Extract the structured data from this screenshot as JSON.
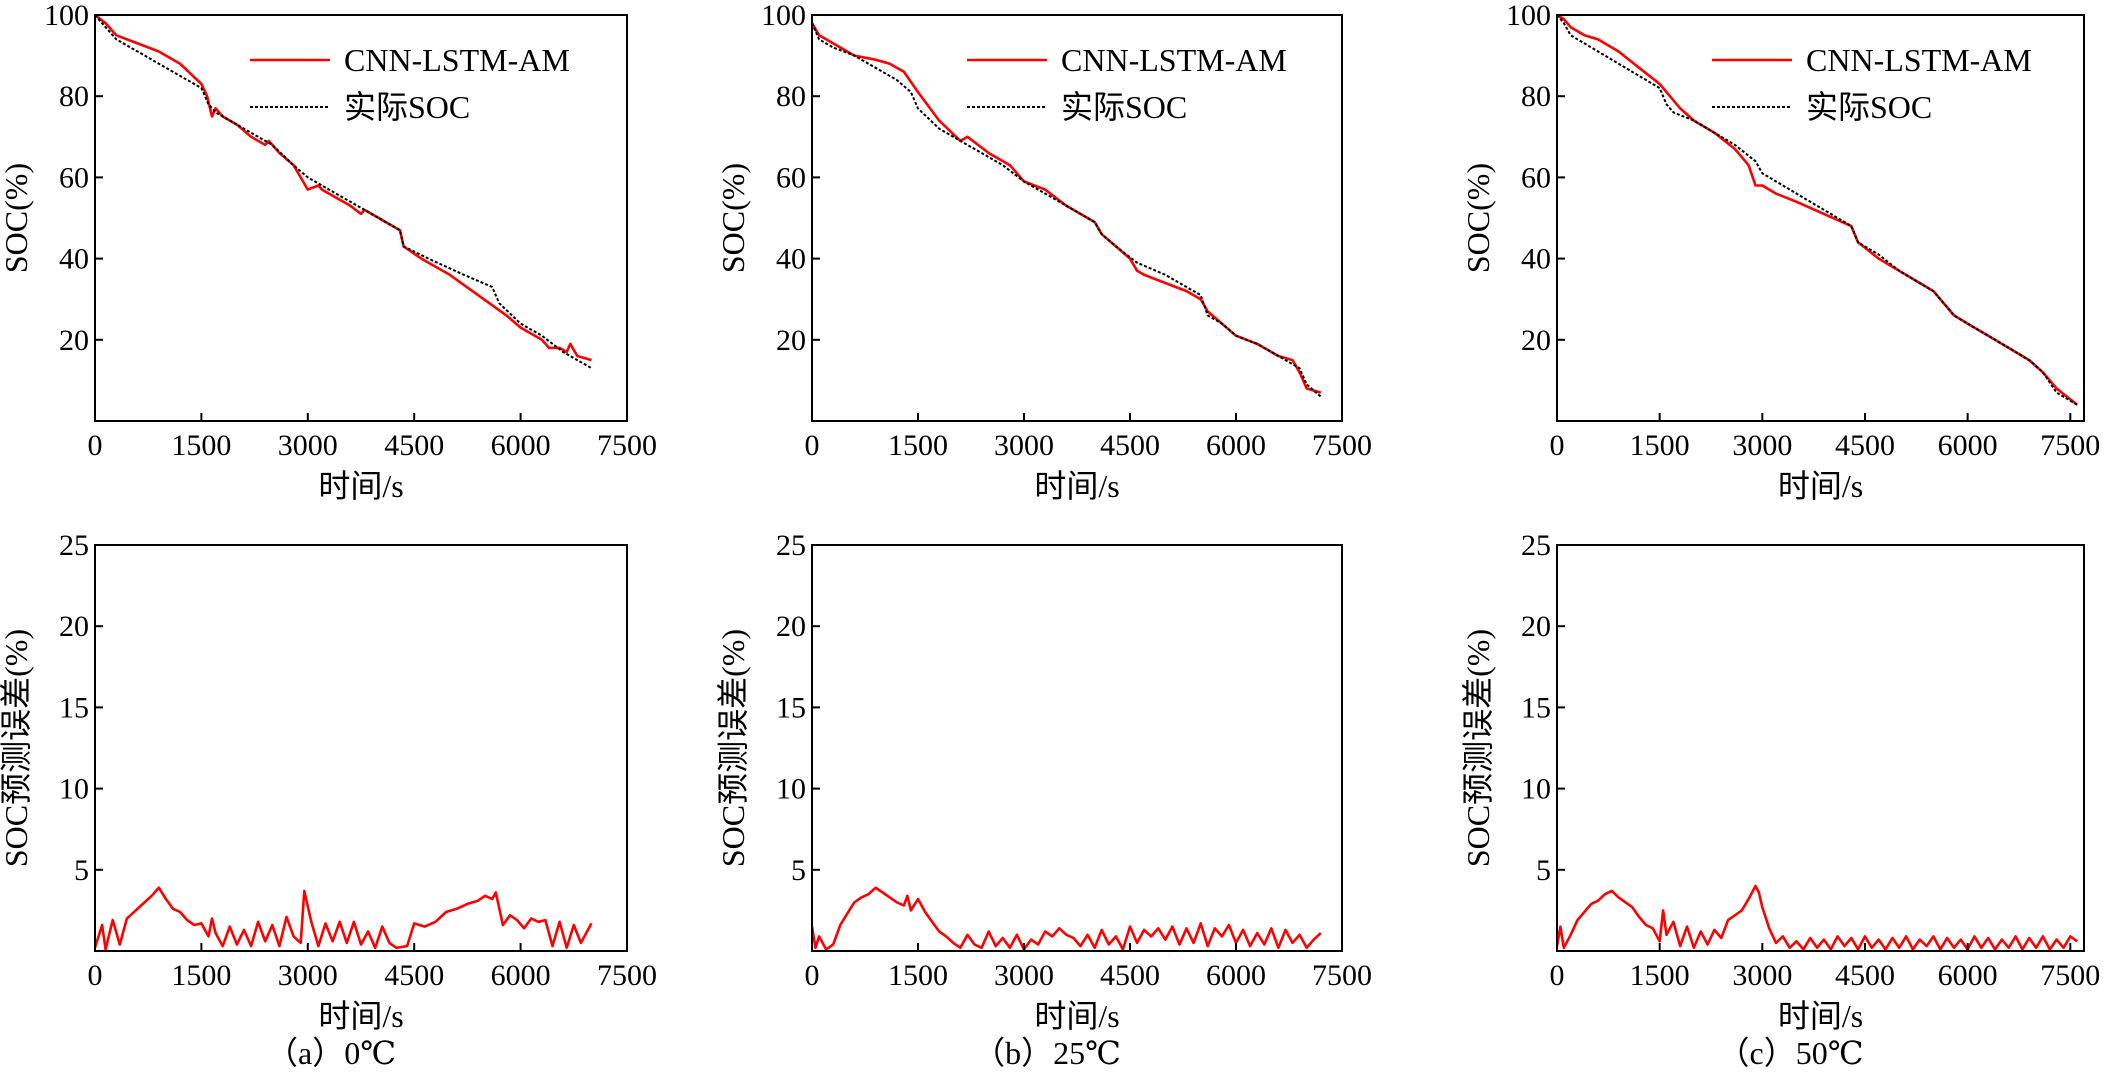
{
  "chart_data": [
    {
      "type": "line",
      "id": "a-soc",
      "xlabel": "时间/s",
      "ylabel": "SOC(%)",
      "xlim": [
        0,
        7500
      ],
      "ylim": [
        0,
        100
      ],
      "xticks": [
        0,
        1500,
        3000,
        4500,
        6000,
        7500
      ],
      "yticks": [
        20,
        40,
        60,
        80,
        100
      ],
      "legend": "top-right",
      "series": [
        {
          "name": "CNN-LSTM-AM",
          "color": "#ff0000",
          "style": "solid",
          "x": [
            0,
            150,
            300,
            600,
            900,
            1200,
            1500,
            1580,
            1650,
            1700,
            1800,
            2000,
            2200,
            2400,
            2450,
            2600,
            2800,
            2900,
            3000,
            3150,
            3200,
            3400,
            3600,
            3750,
            3800,
            4000,
            4300,
            4350,
            4600,
            5000,
            5400,
            5800,
            6000,
            6300,
            6400,
            6550,
            6650,
            6700,
            6800,
            7000
          ],
          "y": [
            100,
            98,
            95,
            93,
            91,
            88,
            83,
            80,
            75,
            77,
            75,
            73,
            70,
            68,
            69,
            66,
            63,
            60,
            57,
            58,
            57,
            55,
            53,
            51,
            52,
            50,
            47,
            43,
            40,
            36,
            31,
            26,
            23,
            20,
            18,
            18,
            17,
            19,
            16,
            15
          ]
        },
        {
          "name": "实际SOC",
          "color": "#000000",
          "style": "dotted",
          "x": [
            0,
            150,
            300,
            600,
            900,
            1200,
            1500,
            1600,
            1700,
            2000,
            2300,
            2500,
            2800,
            3000,
            3300,
            3600,
            4000,
            4300,
            4350,
            4700,
            5200,
            5600,
            5700,
            6000,
            6300,
            6600,
            7000
          ],
          "y": [
            100,
            97,
            94,
            91,
            88,
            85,
            82,
            78,
            76,
            73,
            70,
            68,
            63,
            60,
            57,
            54,
            50,
            47,
            43,
            40,
            36,
            33,
            29,
            24,
            21,
            17,
            13
          ]
        }
      ]
    },
    {
      "type": "line",
      "id": "b-soc",
      "xlabel": "时间/s",
      "ylabel": "SOC(%)",
      "xlim": [
        0,
        7500
      ],
      "ylim": [
        0,
        100
      ],
      "xticks": [
        0,
        1500,
        3000,
        4500,
        6000,
        7500
      ],
      "yticks": [
        20,
        40,
        60,
        80,
        100
      ],
      "legend": "top-right",
      "series": [
        {
          "name": "CNN-LSTM-AM",
          "color": "#ff0000",
          "style": "solid",
          "x": [
            0,
            100,
            300,
            600,
            900,
            1100,
            1300,
            1500,
            1800,
            2100,
            2200,
            2500,
            2800,
            3000,
            3300,
            3600,
            4000,
            4100,
            4300,
            4500,
            4600,
            4700,
            5000,
            5300,
            5500,
            5600,
            5800,
            6000,
            6300,
            6600,
            6800,
            6900,
            7000,
            7200
          ],
          "y": [
            98,
            95,
            93,
            90,
            89,
            88,
            86,
            81,
            74,
            69,
            70,
            66,
            63,
            59,
            57,
            53,
            49,
            46,
            43,
            40,
            37,
            36,
            34,
            32,
            30,
            27,
            24,
            21,
            19,
            16,
            15,
            12,
            8,
            7
          ]
        },
        {
          "name": "实际SOC",
          "color": "#000000",
          "style": "dotted",
          "x": [
            0,
            100,
            300,
            600,
            900,
            1200,
            1400,
            1500,
            1800,
            2100,
            2400,
            2700,
            3000,
            3300,
            3600,
            4000,
            4100,
            4300,
            4600,
            5000,
            5300,
            5500,
            5600,
            5800,
            6000,
            6300,
            6600,
            6900,
            7000,
            7200
          ],
          "y": [
            98,
            94,
            92,
            90,
            87,
            84,
            81,
            77,
            72,
            69,
            66,
            63,
            59,
            56,
            53,
            49,
            46,
            43,
            39,
            36,
            33,
            31,
            26,
            24,
            21,
            19,
            16,
            13,
            9,
            6
          ]
        }
      ]
    },
    {
      "type": "line",
      "id": "c-soc",
      "xlabel": "时间/s",
      "ylabel": "SOC(%)",
      "xlim": [
        0,
        7700
      ],
      "ylim": [
        0,
        100
      ],
      "xticks": [
        0,
        1500,
        3000,
        4500,
        6000,
        7500
      ],
      "yticks": [
        20,
        40,
        60,
        80,
        100
      ],
      "legend": "top-right",
      "series": [
        {
          "name": "CNN-LSTM-AM",
          "color": "#ff0000",
          "style": "solid",
          "x": [
            0,
            100,
            200,
            400,
            600,
            900,
            1200,
            1500,
            1600,
            1700,
            1800,
            2000,
            2300,
            2600,
            2800,
            2900,
            3000,
            3200,
            3500,
            3900,
            4300,
            4400,
            4700,
            5000,
            5300,
            5500,
            5600,
            5800,
            6000,
            6300,
            6600,
            6900,
            7100,
            7300,
            7600
          ],
          "y": [
            100,
            99,
            97,
            95,
            94,
            91,
            87,
            83,
            81,
            79,
            77,
            74,
            71,
            67,
            63,
            58,
            58,
            56,
            54,
            51,
            48,
            44,
            40,
            37,
            34,
            32,
            30,
            26,
            24,
            21,
            18,
            15,
            12,
            8,
            4
          ]
        },
        {
          "name": "实际SOC",
          "color": "#000000",
          "style": "dotted",
          "x": [
            0,
            100,
            200,
            400,
            600,
            900,
            1200,
            1500,
            1600,
            1700,
            2000,
            2300,
            2600,
            2900,
            3000,
            3300,
            3600,
            4000,
            4300,
            4400,
            4700,
            5000,
            5300,
            5500,
            5600,
            5800,
            6000,
            6300,
            6600,
            6900,
            7100,
            7300,
            7600
          ],
          "y": [
            100,
            98,
            95,
            93,
            91,
            88,
            85,
            82,
            78,
            76,
            74,
            71,
            68,
            64,
            61,
            58,
            55,
            51,
            48,
            44,
            41,
            37,
            34,
            32,
            30,
            26,
            24,
            21,
            18,
            15,
            12,
            7,
            4
          ]
        }
      ]
    },
    {
      "type": "line",
      "id": "a-err",
      "xlabel": "时间/s",
      "ylabel": "SOC预测误差(%)",
      "caption": "（a）0℃",
      "xlim": [
        0,
        7500
      ],
      "ylim": [
        0,
        25
      ],
      "xticks": [
        0,
        1500,
        3000,
        4500,
        6000,
        7500
      ],
      "yticks": [
        5,
        10,
        15,
        20,
        25
      ],
      "series": [
        {
          "name": "CNN-LSTM-AM",
          "color": "#ff0000",
          "style": "solid",
          "x": [
            0,
            100,
            150,
            250,
            350,
            450,
            500,
            650,
            800,
            900,
            1000,
            1100,
            1200,
            1300,
            1400,
            1500,
            1600,
            1650,
            1700,
            1800,
            1900,
            2000,
            2100,
            2200,
            2300,
            2400,
            2500,
            2600,
            2700,
            2800,
            2900,
            2950,
            3050,
            3150,
            3250,
            3350,
            3450,
            3550,
            3650,
            3750,
            3850,
            3950,
            4050,
            4150,
            4250,
            4400,
            4500,
            4650,
            4800,
            4950,
            5100,
            5250,
            5400,
            5500,
            5600,
            5650,
            5750,
            5850,
            5950,
            6050,
            6150,
            6250,
            6350,
            6450,
            6550,
            6650,
            6750,
            6850,
            7000
          ],
          "y": [
            0.2,
            1.6,
            0.1,
            1.9,
            0.4,
            2.0,
            2.2,
            2.8,
            3.4,
            3.9,
            3.2,
            2.6,
            2.4,
            1.9,
            1.6,
            1.7,
            0.9,
            2.0,
            1.1,
            0.3,
            1.5,
            0.4,
            1.3,
            0.3,
            1.8,
            0.6,
            1.6,
            0.3,
            2.1,
            0.9,
            0.5,
            3.7,
            1.8,
            0.3,
            1.7,
            0.6,
            1.8,
            0.5,
            1.8,
            0.4,
            1.2,
            0.2,
            1.5,
            0.5,
            0.2,
            0.3,
            1.7,
            1.5,
            1.8,
            2.4,
            2.6,
            2.9,
            3.1,
            3.4,
            3.2,
            3.6,
            1.6,
            2.2,
            1.9,
            1.4,
            2.0,
            1.8,
            1.9,
            0.3,
            1.8,
            0.2,
            1.6,
            0.5,
            1.7
          ]
        }
      ]
    },
    {
      "type": "line",
      "id": "b-err",
      "xlabel": "时间/s",
      "ylabel": "SOC预测误差(%)",
      "caption": "（b）25℃",
      "xlim": [
        0,
        7500
      ],
      "ylim": [
        0,
        25
      ],
      "xticks": [
        0,
        1500,
        3000,
        4500,
        6000,
        7500
      ],
      "yticks": [
        5,
        10,
        15,
        20,
        25
      ],
      "series": [
        {
          "name": "CNN-LSTM-AM",
          "color": "#ff0000",
          "style": "solid",
          "x": [
            0,
            50,
            100,
            200,
            300,
            400,
            500,
            600,
            700,
            800,
            900,
            1000,
            1100,
            1200,
            1300,
            1350,
            1400,
            1500,
            1600,
            1700,
            1800,
            1900,
            2000,
            2100,
            2200,
            2300,
            2400,
            2500,
            2600,
            2700,
            2800,
            2900,
            3000,
            3100,
            3200,
            3300,
            3400,
            3500,
            3600,
            3700,
            3800,
            3900,
            4000,
            4100,
            4200,
            4300,
            4400,
            4500,
            4600,
            4700,
            4800,
            4900,
            5000,
            5100,
            5200,
            5300,
            5400,
            5500,
            5600,
            5700,
            5800,
            5900,
            6000,
            6100,
            6200,
            6300,
            6400,
            6500,
            6600,
            6700,
            6800,
            6900,
            7000,
            7100,
            7200
          ],
          "y": [
            1.5,
            0.2,
            0.9,
            0.1,
            0.4,
            1.6,
            2.3,
            3.0,
            3.3,
            3.5,
            3.9,
            3.6,
            3.3,
            3.0,
            2.8,
            3.4,
            2.5,
            3.2,
            2.4,
            1.8,
            1.2,
            0.9,
            0.5,
            0.2,
            1.0,
            0.4,
            0.2,
            1.2,
            0.3,
            0.8,
            0.2,
            1.0,
            0.1,
            0.7,
            0.4,
            1.2,
            0.9,
            1.4,
            1.0,
            0.8,
            0.3,
            1.0,
            0.2,
            1.3,
            0.4,
            0.9,
            0.1,
            1.5,
            0.5,
            1.3,
            0.9,
            1.4,
            0.7,
            1.5,
            0.4,
            1.4,
            0.5,
            1.7,
            0.3,
            1.4,
            0.9,
            1.6,
            0.5,
            1.3,
            0.3,
            1.1,
            0.4,
            1.4,
            0.2,
            1.3,
            0.5,
            1.0,
            0.2,
            0.7,
            1.1
          ]
        }
      ]
    },
    {
      "type": "line",
      "id": "c-err",
      "xlabel": "时间/s",
      "ylabel": "SOC预测误差(%)",
      "caption": "（c）50℃",
      "xlim": [
        0,
        7700
      ],
      "ylim": [
        0,
        25
      ],
      "xticks": [
        0,
        1500,
        3000,
        4500,
        6000,
        7500
      ],
      "yticks": [
        5,
        10,
        15,
        20,
        25
      ],
      "series": [
        {
          "name": "CNN-LSTM-AM",
          "color": "#ff0000",
          "style": "solid",
          "x": [
            0,
            50,
            100,
            200,
            300,
            400,
            500,
            600,
            700,
            800,
            900,
            1000,
            1100,
            1200,
            1300,
            1400,
            1500,
            1550,
            1600,
            1700,
            1800,
            1900,
            2000,
            2100,
            2200,
            2300,
            2400,
            2500,
            2600,
            2700,
            2800,
            2900,
            2950,
            3000,
            3100,
            3200,
            3300,
            3400,
            3500,
            3600,
            3700,
            3800,
            3900,
            4000,
            4100,
            4200,
            4300,
            4400,
            4500,
            4600,
            4700,
            4800,
            4900,
            5000,
            5100,
            5200,
            5300,
            5400,
            5500,
            5600,
            5700,
            5800,
            5900,
            6000,
            6100,
            6200,
            6300,
            6400,
            6500,
            6600,
            6700,
            6800,
            6900,
            7000,
            7100,
            7200,
            7300,
            7400,
            7500,
            7600
          ],
          "y": [
            0.3,
            1.5,
            0.2,
            1.0,
            1.9,
            2.4,
            2.9,
            3.1,
            3.5,
            3.7,
            3.3,
            3.0,
            2.7,
            2.1,
            1.6,
            1.4,
            0.6,
            2.5,
            1.0,
            1.8,
            0.3,
            1.5,
            0.2,
            1.2,
            0.4,
            1.3,
            0.8,
            1.9,
            2.2,
            2.5,
            3.2,
            4.0,
            3.6,
            2.7,
            1.4,
            0.5,
            0.9,
            0.2,
            0.6,
            0.1,
            0.8,
            0.2,
            0.7,
            0.1,
            0.9,
            0.3,
            0.8,
            0.1,
            0.9,
            0.2,
            0.7,
            0.1,
            0.8,
            0.2,
            0.9,
            0.1,
            0.7,
            0.3,
            0.9,
            0.1,
            0.8,
            0.2,
            0.7,
            0.1,
            0.9,
            0.2,
            0.8,
            0.1,
            0.7,
            0.2,
            0.9,
            0.1,
            0.8,
            0.2,
            0.9,
            0.1,
            0.7,
            0.2,
            0.9,
            0.6
          ]
        }
      ]
    }
  ]
}
